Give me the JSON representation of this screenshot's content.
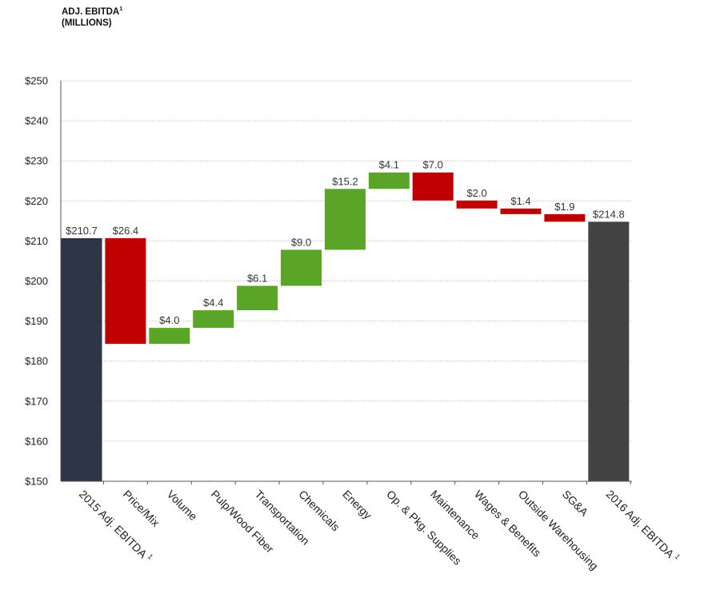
{
  "title": {
    "line1": "ADJ. EBITDA",
    "sup": "1",
    "line2": "(MILLIONS)"
  },
  "chart_data": {
    "type": "bar",
    "subtype": "waterfall",
    "ylim": [
      150,
      250
    ],
    "yticks": [
      150,
      160,
      170,
      180,
      190,
      200,
      210,
      220,
      230,
      240,
      250
    ],
    "ytick_labels": [
      "$150",
      "$160",
      "$170",
      "$180",
      "$190",
      "$200",
      "$210",
      "$220",
      "$230",
      "$240",
      "$250"
    ],
    "grid": true,
    "colors": {
      "total_start": "#2e3547",
      "total_end": "#434343",
      "increase": "#5aa527",
      "decrease": "#c00000",
      "grid": "#c8c8c8"
    },
    "bars": [
      {
        "category": "2015 Adj. EBITDA",
        "sup": "1",
        "kind": "total",
        "low": 150,
        "high": 210.7,
        "label": "$210.7"
      },
      {
        "category": "Price/Mix",
        "kind": "decrease",
        "low": 184.3,
        "high": 210.7,
        "label": "$26.4"
      },
      {
        "category": "Volume",
        "kind": "increase",
        "low": 184.3,
        "high": 188.3,
        "label": "$4.0"
      },
      {
        "category": "Pulp/Wood Fiber",
        "kind": "increase",
        "low": 188.3,
        "high": 192.7,
        "label": "$4.4"
      },
      {
        "category": "Transportation",
        "kind": "increase",
        "low": 192.7,
        "high": 198.8,
        "label": "$6.1"
      },
      {
        "category": "Chemicals",
        "kind": "increase",
        "low": 198.8,
        "high": 207.8,
        "label": "$9.0"
      },
      {
        "category": "Energy",
        "kind": "increase",
        "low": 207.8,
        "high": 223.0,
        "label": "$15.2"
      },
      {
        "category": "Op. & Pkg. Supplies",
        "kind": "increase",
        "low": 223.0,
        "high": 227.1,
        "label": "$4.1"
      },
      {
        "category": "Maintenance",
        "kind": "decrease",
        "low": 220.1,
        "high": 227.1,
        "label": "$7.0"
      },
      {
        "category": "Wages & Benefits",
        "kind": "decrease",
        "low": 218.1,
        "high": 220.1,
        "label": "$2.0"
      },
      {
        "category": "Outside Warehousing",
        "kind": "decrease",
        "low": 216.7,
        "high": 218.1,
        "label": "$1.4"
      },
      {
        "category": "SG&A",
        "kind": "decrease",
        "low": 214.8,
        "high": 216.7,
        "label": "$1.9"
      },
      {
        "category": "2016 Adj. EBITDA",
        "sup": "1",
        "kind": "total",
        "low": 150,
        "high": 214.8,
        "label": "$214.8"
      }
    ]
  }
}
